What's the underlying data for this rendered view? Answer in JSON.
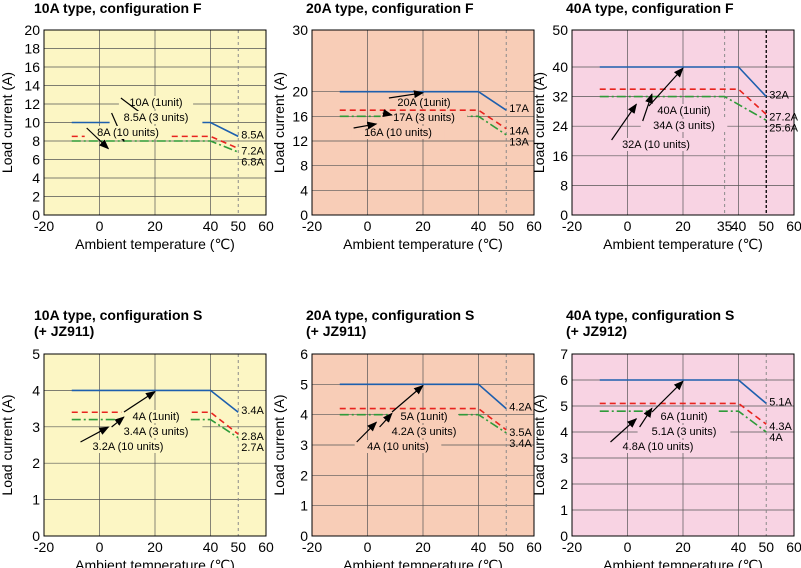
{
  "colors": {
    "yellow": "#fcf6c4",
    "salmon": "#f8cdb7",
    "pink": "#f8d3e3",
    "blue": "#1d5fae",
    "red": "#e8241f",
    "green": "#2f9b3a",
    "grid": "#555555"
  },
  "chart_data": [
    {
      "type": "line",
      "title": "10A type, configuration F",
      "xlabel": "Ambient temperature (℃)",
      "ylabel": "Load current (A)",
      "xlim": [
        -20,
        60
      ],
      "ylim": [
        0,
        20
      ],
      "xticks": [
        "-20",
        "0",
        "20",
        "40",
        "50",
        "60"
      ],
      "yticks": [
        "0",
        "2",
        "4",
        "6",
        "8",
        "10",
        "12",
        "14",
        "16",
        "18",
        "20"
      ],
      "background": "yellow",
      "series": [
        {
          "name": "10A (1unit)",
          "color": "blue",
          "dash": "solid",
          "x": [
            -10,
            40,
            50
          ],
          "y": [
            10,
            10,
            8.5
          ]
        },
        {
          "name": "8.5A (3 units)",
          "color": "red",
          "dash": "dash",
          "x": [
            -10,
            40,
            50
          ],
          "y": [
            8.5,
            8.5,
            7.2
          ]
        },
        {
          "name": "8A (10 units)",
          "color": "green",
          "dash": "dashdot",
          "x": [
            -10,
            40,
            50
          ],
          "y": [
            8,
            8,
            6.8
          ]
        }
      ],
      "end_labels": [
        "8.5A",
        "7.2A",
        "6.8A"
      ],
      "marker_lines": [
        {
          "x": 50,
          "style": "gray"
        }
      ]
    },
    {
      "type": "line",
      "title": "20A type, configuration F",
      "xlabel": "Ambient temperature (℃)",
      "ylabel": "Load current (A)",
      "xlim": [
        -20,
        60
      ],
      "ylim": [
        0,
        30
      ],
      "xticks": [
        "-20",
        "0",
        "20",
        "40",
        "50",
        "60"
      ],
      "yticks": [
        "0",
        "4",
        "8",
        "12",
        "16",
        "20",
        "30"
      ],
      "background": "salmon",
      "series": [
        {
          "name": "20A (1unit)",
          "color": "blue",
          "dash": "solid",
          "x": [
            -10,
            40,
            50
          ],
          "y": [
            20,
            20,
            17
          ]
        },
        {
          "name": "17A (3 units)",
          "color": "red",
          "dash": "dash",
          "x": [
            -10,
            40,
            50
          ],
          "y": [
            17,
            17,
            14
          ]
        },
        {
          "name": "16A (10 units)",
          "color": "green",
          "dash": "dashdot",
          "x": [
            -10,
            40,
            50
          ],
          "y": [
            16,
            16,
            13
          ]
        }
      ],
      "end_labels": [
        "17A",
        "14A",
        "13A"
      ],
      "marker_lines": [
        {
          "x": 50,
          "style": "gray"
        }
      ]
    },
    {
      "type": "line",
      "title": "40A type, configuration F",
      "xlabel": "Ambient temperature (℃)",
      "ylabel": "Load current (A)",
      "xlim": [
        -20,
        60
      ],
      "ylim": [
        0,
        50
      ],
      "xticks": [
        "-20",
        "0",
        "20",
        "35",
        "40",
        "50",
        "60"
      ],
      "yticks": [
        "0",
        "8",
        "16",
        "24",
        "32",
        "40",
        "50"
      ],
      "background": "pink",
      "series": [
        {
          "name": "40A (1unit)",
          "color": "blue",
          "dash": "solid",
          "x": [
            -10,
            40,
            50
          ],
          "y": [
            40,
            40,
            32
          ]
        },
        {
          "name": "34A (3 units)",
          "color": "red",
          "dash": "dash",
          "x": [
            -10,
            40,
            50
          ],
          "y": [
            34,
            34,
            27.2
          ]
        },
        {
          "name": "32A (10 units)",
          "color": "green",
          "dash": "dashdot",
          "x": [
            -10,
            35,
            50
          ],
          "y": [
            32,
            32,
            25.6
          ]
        }
      ],
      "end_labels": [
        "32A",
        "27.2A",
        "25.6A"
      ],
      "marker_lines": [
        {
          "x": 35,
          "style": "gray"
        },
        {
          "x": 50,
          "style": "black"
        }
      ]
    },
    {
      "type": "line",
      "title": "10A type, configuration S\n(+ JZ911)",
      "xlabel": "Ambient temperature (℃)",
      "ylabel": "Load current (A)",
      "xlim": [
        -20,
        60
      ],
      "ylim": [
        0,
        5
      ],
      "xticks": [
        "-20",
        "0",
        "20",
        "40",
        "50",
        "60"
      ],
      "yticks": [
        "0",
        "1",
        "2",
        "3",
        "4",
        "5"
      ],
      "background": "yellow",
      "series": [
        {
          "name": "4A (1unit)",
          "color": "blue",
          "dash": "solid",
          "x": [
            -10,
            40,
            50
          ],
          "y": [
            4,
            4,
            3.4
          ]
        },
        {
          "name": "3.4A (3 units)",
          "color": "red",
          "dash": "dash",
          "x": [
            -10,
            40,
            50
          ],
          "y": [
            3.4,
            3.4,
            2.8
          ]
        },
        {
          "name": "3.2A (10 units)",
          "color": "green",
          "dash": "dashdot",
          "x": [
            -10,
            40,
            50
          ],
          "y": [
            3.2,
            3.2,
            2.7
          ]
        }
      ],
      "end_labels": [
        "3.4A",
        "2.8A",
        "2.7A"
      ],
      "marker_lines": [
        {
          "x": 50,
          "style": "gray"
        }
      ]
    },
    {
      "type": "line",
      "title": "20A type, configuration S\n(+ JZ911)",
      "xlabel": "Ambient temperature (℃)",
      "ylabel": "Load current (A)",
      "xlim": [
        -20,
        60
      ],
      "ylim": [
        0,
        6
      ],
      "xticks": [
        "-20",
        "0",
        "20",
        "40",
        "50",
        "60"
      ],
      "yticks": [
        "0",
        "1",
        "2",
        "3",
        "4",
        "5",
        "6"
      ],
      "background": "salmon",
      "series": [
        {
          "name": "5A (1unit)",
          "color": "blue",
          "dash": "solid",
          "x": [
            -10,
            40,
            50
          ],
          "y": [
            5,
            5,
            4.2
          ]
        },
        {
          "name": "4.2A (3 units)",
          "color": "red",
          "dash": "dash",
          "x": [
            -10,
            40,
            50
          ],
          "y": [
            4.2,
            4.2,
            3.5
          ]
        },
        {
          "name": "4A (10 units)",
          "color": "green",
          "dash": "dashdot",
          "x": [
            -10,
            40,
            50
          ],
          "y": [
            4,
            4,
            3.4
          ]
        }
      ],
      "end_labels": [
        "4.2A",
        "3.5A",
        "3.4A"
      ],
      "marker_lines": [
        {
          "x": 50,
          "style": "gray"
        }
      ]
    },
    {
      "type": "line",
      "title": "40A type, configuration S\n(+ JZ912)",
      "xlabel": "Ambient temperature (℃)",
      "ylabel": "Load current (A)",
      "xlim": [
        -20,
        60
      ],
      "ylim": [
        0,
        7
      ],
      "xticks": [
        "-20",
        "0",
        "20",
        "40",
        "50",
        "60"
      ],
      "yticks": [
        "0",
        "1",
        "2",
        "3",
        "4",
        "5",
        "6",
        "7"
      ],
      "background": "pink",
      "series": [
        {
          "name": "6A (1unit)",
          "color": "blue",
          "dash": "solid",
          "x": [
            -10,
            40,
            50
          ],
          "y": [
            6,
            6,
            5.1
          ]
        },
        {
          "name": "5.1A (3 units)",
          "color": "red",
          "dash": "dash",
          "x": [
            -10,
            40,
            50
          ],
          "y": [
            5.1,
            5.1,
            4.3
          ]
        },
        {
          "name": "4.8A (10 units)",
          "color": "green",
          "dash": "dashdot",
          "x": [
            -10,
            40,
            50
          ],
          "y": [
            4.8,
            4.8,
            4
          ]
        }
      ],
      "end_labels": [
        "5.1A",
        "4.3A",
        "4A"
      ],
      "marker_lines": [
        {
          "x": 50,
          "style": "gray"
        }
      ]
    }
  ]
}
